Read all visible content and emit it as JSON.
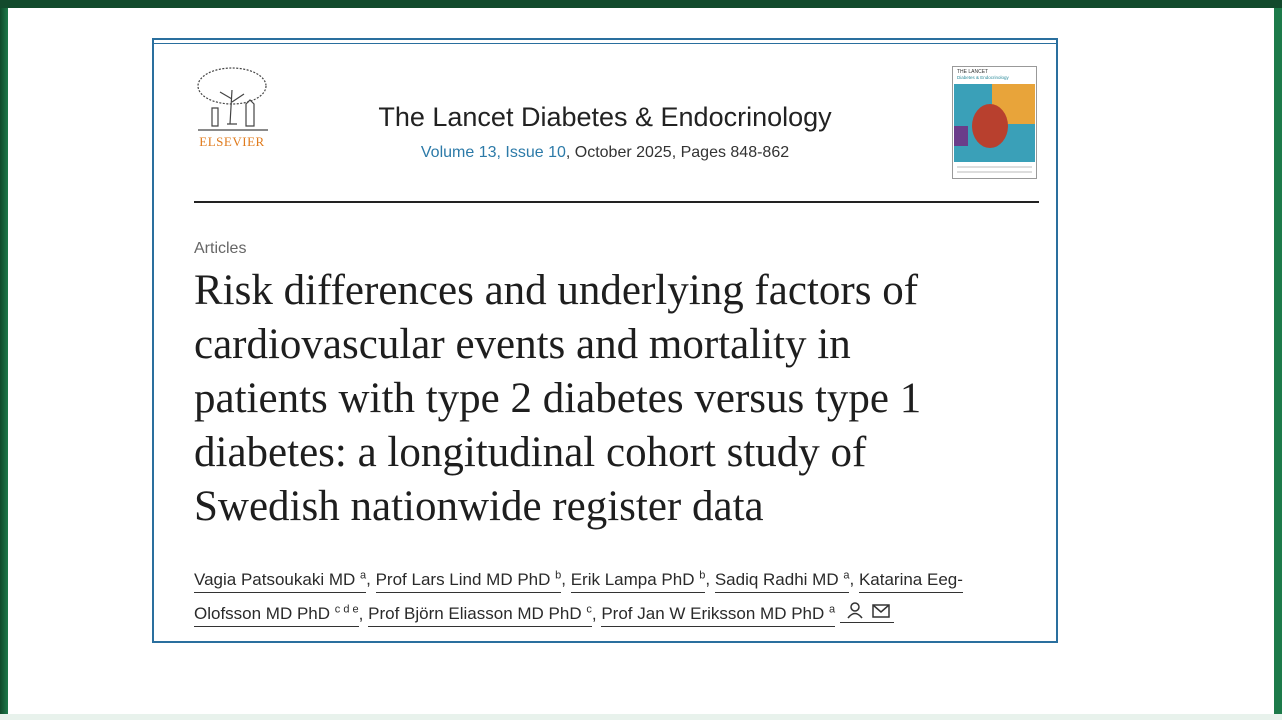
{
  "journal": {
    "name": "The Lancet Diabetes & Endocrinology",
    "volume_issue": "Volume 13, Issue 10",
    "details": ", October 2025, Pages 848-862",
    "publisher": "ELSEVIER",
    "cover_title": "THE LANCET",
    "cover_subtitle": "Diabetes & Endocrinology"
  },
  "article": {
    "section": "Articles",
    "title_lines": [
      "Risk differences and underlying factors of",
      "cardiovascular events and mortality in",
      "patients with type 2 diabetes versus type 1",
      "diabetes: a longitudinal cohort study of",
      "Swedish nationwide register data"
    ],
    "separator": ",",
    "authors": [
      {
        "name": "Vagia Patsoukaki MD",
        "affiliations": "a"
      },
      {
        "name": "Prof Lars Lind MD PhD",
        "affiliations": "b"
      },
      {
        "name": "Erik Lampa PhD",
        "affiliations": "b"
      },
      {
        "name": "Sadiq Radhi MD",
        "affiliations": "a"
      },
      {
        "name": "Katarina Eeg-Olofsson MD PhD",
        "affiliations": "c d e"
      },
      {
        "name": "Prof Björn Eliasson MD PhD",
        "affiliations": "c"
      },
      {
        "name": "Prof Jan W Eriksson MD PhD",
        "affiliations": "a"
      }
    ]
  }
}
